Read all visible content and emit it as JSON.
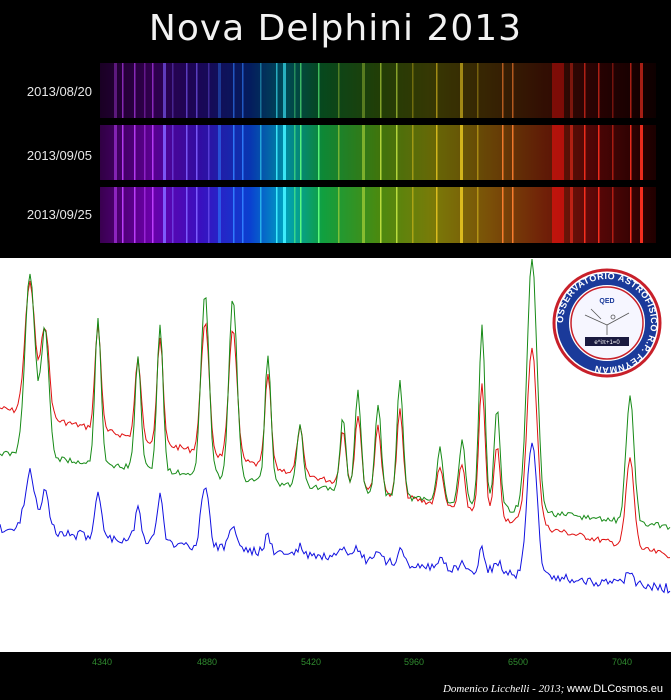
{
  "title": "Nova Delphini 2013",
  "observations": [
    {
      "date": "2013/08/20",
      "brightness": 0.45
    },
    {
      "date": "2013/09/05",
      "brightness": 0.9
    },
    {
      "date": "2013/09/25",
      "brightness": 1.0
    }
  ],
  "x_ticks": [
    "4340",
    "4880",
    "5420",
    "5960",
    "6500",
    "7040"
  ],
  "seal": {
    "ring_text": "OSSERVATORIO ASTROFISICO R.P. FEYNMAN",
    "inner_text_top": "QED",
    "inner_text_bottom": "e^iπ+1=0"
  },
  "credit": {
    "author": "Domenico Licchelli - 2013",
    "separator": ";",
    "url": "www.DLCosmos.eu"
  },
  "colors": {
    "series_red": "#e01010",
    "series_green": "#168a16",
    "series_blue": "#1010e0",
    "tick": "#2f8a2f",
    "seal_ring": "#c8202a",
    "seal_band": "#1a3a9a"
  }
}
